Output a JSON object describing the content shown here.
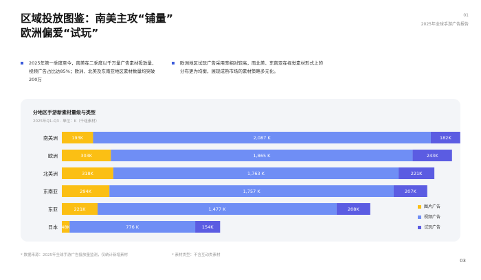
{
  "header": {
    "title_line1": "区域投放图鉴：南美主攻“铺量”",
    "title_line2": "欧洲偏爱“试玩”",
    "page_number": "01",
    "report_tag": "2025年全球手游广告报告"
  },
  "insights": [
    {
      "text": "2025年第一季度至今，南美在二季度以千万量广告素材投放量，视频广告占比达85%；欧洲、北美及东南亚地区素材数量均突破200万"
    },
    {
      "text": "欧洲地区试玩广告采用率相对较高，而北美、东南亚在视觉素材形式上的分布更为均衡，展现成熟市场的素材策略多元化。"
    }
  ],
  "chart_title": "分地区手游新素材量级与类型",
  "chart_subtitle": "2025年Q1–Q3 · 单位：K（千组素材）",
  "chart_data": {
    "type": "bar",
    "orientation": "horizontal",
    "stacked": true,
    "categories": [
      "南美洲",
      "欧洲",
      "北美洲",
      "东南亚",
      "东亚",
      "日本"
    ],
    "series": [
      {
        "name": "图片广告",
        "color": "#fbbf14",
        "values": [
          193,
          303,
          318,
          294,
          221,
          48
        ],
        "labels": [
          "193K",
          "303K",
          "318K",
          "294K",
          "221K",
          "48K"
        ]
      },
      {
        "name": "视频广告",
        "color": "#6f8ef5",
        "values": [
          2087,
          1865,
          1763,
          1757,
          1477,
          776
        ],
        "labels": [
          "2,087 K",
          "1,865 K",
          "1,763 K",
          "1,757 K",
          "1,477 K",
          "776 K"
        ]
      },
      {
        "name": "试玩广告",
        "color": "#5b5ce2",
        "values": [
          182,
          243,
          221,
          207,
          208,
          154
        ],
        "labels": [
          "182K",
          "243K",
          "221K",
          "207K",
          "208K",
          "154K"
        ]
      }
    ],
    "legend_position": "bottom-right"
  },
  "footnotes": {
    "left": "* 数据来源：2025年全球手游广告投放量监测，仅统计新增素材",
    "right": "* 素材类型：不含互动类素材"
  },
  "page_footer": "03"
}
